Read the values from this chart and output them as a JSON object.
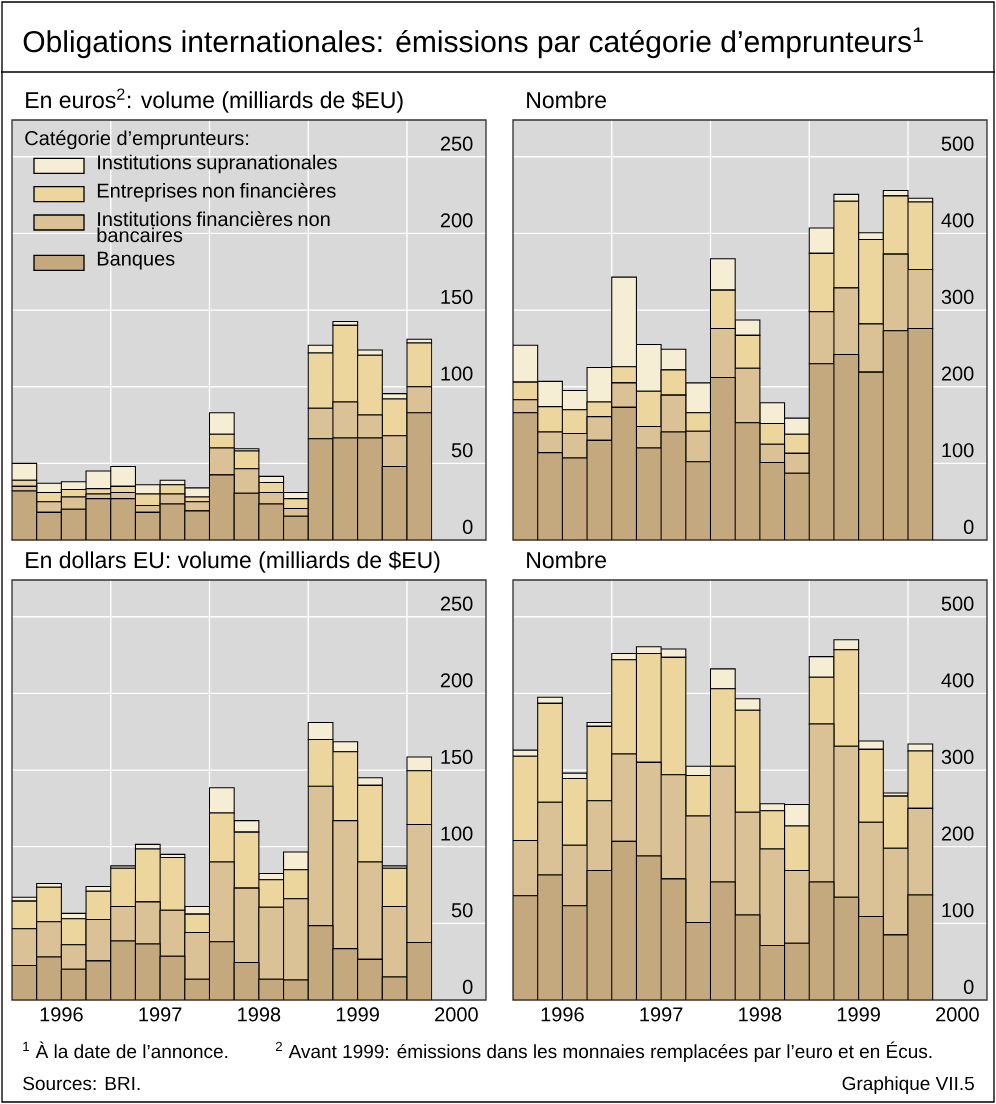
{
  "chart_data": [
    {
      "type": "bar",
      "stacked": true,
      "title": "Obligations internationales: émissions par catégorie d’emprunteurs$^{1}$",
      "subtitle": "En euros$^{2}$: volume (milliards de $EU)",
      "legend_title": "Catégorie d’emprunteurs:",
      "legend": "top left",
      "grid": true,
      "tick_labels": "y",
      "x": [
        1996.125,
        1996.375,
        1996.625,
        1996.875,
        1997.125,
        1997.375,
        1997.625,
        1997.875,
        1998.125,
        1998.375,
        1998.625,
        1998.875,
        1999.125,
        1999.375,
        1999.625,
        1999.875,
        2000.125
      ],
      "xlim": [
        1996,
        2000.8
      ],
      "ylim": [
        0,
        274
      ],
      "yticks": [
        0,
        50,
        100,
        150,
        200,
        250
      ],
      "xticks": [
        {
          "value": 1997,
          "label": null
        },
        {
          "value": 1998,
          "label": null
        },
        {
          "value": 1999,
          "label": null
        },
        {
          "value": 2000,
          "label": null
        }
      ],
      "series": [
        {
          "name": "Banques",
          "color": "#c4a87e",
          "values": [
            32,
            18,
            20,
            27,
            27,
            18,
            23.5,
            19,
            42.5,
            30.5,
            23.5,
            15.5,
            66,
            66.5,
            66.5,
            48,
            83
          ]
        },
        {
          "name": "Institutions financières non bancaires",
          "color": "#dbc196",
          "values": [
            3,
            7,
            8,
            3,
            4,
            4.5,
            6.5,
            6,
            17.5,
            16,
            7.5,
            5,
            20,
            23.5,
            15,
            20,
            17
          ]
        },
        {
          "name": "Entreprises non financières",
          "color": "#ecd69e",
          "values": [
            4,
            6,
            5,
            3.5,
            4,
            7.5,
            6,
            3,
            9,
            11.5,
            6.5,
            6.5,
            36,
            50,
            39,
            24,
            28.5
          ]
        },
        {
          "name": "Institutions supranationales",
          "color": "#f5eed4",
          "values": [
            11,
            6,
            5,
            11.5,
            13,
            6,
            3,
            6,
            14,
            1.5,
            4,
            4,
            5,
            2.5,
            3.5,
            3.5,
            2.5
          ]
        }
      ],
      "annotations": [
        "$^{1}$ À la date de l’annonce.",
        "$^{2}$ Avant 1999: émissions dans les monnaies remplacées par l’euro et en Écus.",
        "Sources: BRI.",
        "Graphique VII.5"
      ]
    },
    {
      "type": "bar",
      "stacked": true,
      "title": "Nombre",
      "grid": true,
      "tick_labels": "y",
      "x": [
        1996.125,
        1996.375,
        1996.625,
        1996.875,
        1997.125,
        1997.375,
        1997.625,
        1997.875,
        1998.125,
        1998.375,
        1998.625,
        1998.875,
        1999.125,
        1999.375,
        1999.625,
        1999.875,
        2000.125
      ],
      "xlim": [
        1996,
        2000.8
      ],
      "ylim": [
        0,
        548
      ],
      "yticks": [
        0,
        100,
        200,
        300,
        400,
        500
      ],
      "xticks": [
        {
          "value": 1997,
          "label": null
        },
        {
          "value": 1998,
          "label": null
        },
        {
          "value": 1999,
          "label": null
        },
        {
          "value": 2000,
          "label": null
        }
      ],
      "series": [
        {
          "color": "#c4a87e",
          "values": [
            166,
            114,
            107,
            130,
            173,
            120,
            141,
            102,
            212,
            153,
            101,
            87,
            230,
            242,
            219,
            273,
            276
          ]
        },
        {
          "color": "#dbc196",
          "values": [
            17,
            27,
            32,
            31,
            32,
            28,
            48,
            40,
            64,
            71,
            24,
            26,
            68,
            87,
            63,
            100,
            77
          ]
        },
        {
          "color": "#ecd69e",
          "values": [
            23,
            33,
            31,
            19,
            21,
            46,
            33,
            24,
            50,
            43,
            27,
            25,
            76,
            113,
            110,
            76,
            88
          ]
        },
        {
          "color": "#f5eed4",
          "values": [
            48,
            33,
            25,
            45,
            117,
            61,
            27,
            39,
            41,
            20,
            27,
            21,
            33,
            9,
            9,
            7,
            5
          ]
        }
      ]
    },
    {
      "type": "bar",
      "stacked": true,
      "title": "En dollars EU: volume (milliards de $EU)",
      "grid": true,
      "x": [
        1996.125,
        1996.375,
        1996.625,
        1996.875,
        1997.125,
        1997.375,
        1997.625,
        1997.875,
        1998.125,
        1998.375,
        1998.625,
        1998.875,
        1999.125,
        1999.375,
        1999.625,
        1999.875,
        2000.125
      ],
      "xlim": [
        1996,
        2000.8
      ],
      "ylim": [
        0,
        274
      ],
      "yticks": [
        0,
        50,
        100,
        150,
        200,
        250
      ],
      "xticks": [
        {
          "value": 1996.5,
          "label": "1996"
        },
        {
          "value": 1997,
          "label": null
        },
        {
          "value": 1997.5,
          "label": "1997"
        },
        {
          "value": 1998,
          "label": null
        },
        {
          "value": 1998.5,
          "label": "1998"
        },
        {
          "value": 1999,
          "label": null
        },
        {
          "value": 1999.5,
          "label": "1999"
        },
        {
          "value": 2000,
          "label": null
        },
        {
          "value": 2000.5,
          "label": "2000"
        }
      ],
      "series": [
        {
          "color": "#c4a87e",
          "values": [
            22.5,
            28,
            20,
            25.5,
            38.5,
            36.5,
            28.5,
            13.5,
            38,
            24.5,
            13.5,
            13,
            48.5,
            33.5,
            26.5,
            15,
            37.5
          ]
        },
        {
          "color": "#dbc196",
          "values": [
            24,
            23,
            16,
            27,
            22.5,
            27.5,
            30,
            30.5,
            52,
            48.5,
            47,
            53,
            91,
            83.5,
            63.5,
            46,
            77
          ]
        },
        {
          "color": "#ecd69e",
          "values": [
            18,
            22.5,
            17,
            18.5,
            25,
            34.5,
            34.5,
            12,
            32,
            36.5,
            18,
            19,
            30.5,
            45,
            50,
            25,
            35
          ]
        },
        {
          "color": "#f5eed4",
          "values": [
            2.5,
            2.5,
            3.5,
            3,
            1.5,
            3,
            2,
            5,
            16.5,
            7.5,
            4,
            11.5,
            11,
            6.5,
            5,
            1.5,
            9
          ]
        }
      ]
    },
    {
      "type": "bar",
      "stacked": true,
      "title": "Nombre",
      "grid": true,
      "x": [
        1996.125,
        1996.375,
        1996.625,
        1996.875,
        1997.125,
        1997.375,
        1997.625,
        1997.875,
        1998.125,
        1998.375,
        1998.625,
        1998.875,
        1999.125,
        1999.375,
        1999.625,
        1999.875,
        2000.125
      ],
      "xlim": [
        1996,
        2000.8
      ],
      "ylim": [
        0,
        548
      ],
      "yticks": [
        0,
        100,
        200,
        300,
        400,
        500
      ],
      "xticks": [
        {
          "value": 1996.5,
          "label": "1996"
        },
        {
          "value": 1997,
          "label": null
        },
        {
          "value": 1997.5,
          "label": "1997"
        },
        {
          "value": 1998,
          "label": null
        },
        {
          "value": 1998.5,
          "label": "1998"
        },
        {
          "value": 1999,
          "label": null
        },
        {
          "value": 1999.5,
          "label": "1999"
        },
        {
          "value": 2000,
          "label": null
        },
        {
          "value": 2000.5,
          "label": "2000"
        }
      ],
      "series": [
        {
          "color": "#c4a87e",
          "values": [
            136,
            163,
            123,
            169,
            207,
            188,
            158,
            101,
            154,
            111,
            71,
            74,
            154,
            134,
            109,
            85,
            137
          ]
        },
        {
          "color": "#dbc196",
          "values": [
            72,
            95,
            79,
            91,
            114,
            122,
            136,
            139,
            151,
            134,
            126,
            95,
            206,
            197,
            123,
            113,
            113
          ]
        },
        {
          "color": "#ecd69e",
          "values": [
            110,
            129,
            87,
            97,
            123,
            142,
            153,
            53,
            101,
            133,
            50,
            58,
            61,
            126,
            95,
            68,
            75
          ]
        },
        {
          "color": "#f5eed4",
          "values": [
            8,
            8,
            7,
            5,
            8,
            9,
            11,
            12,
            26,
            15,
            9,
            28,
            27,
            13,
            11,
            4,
            9
          ]
        }
      ]
    }
  ]
}
